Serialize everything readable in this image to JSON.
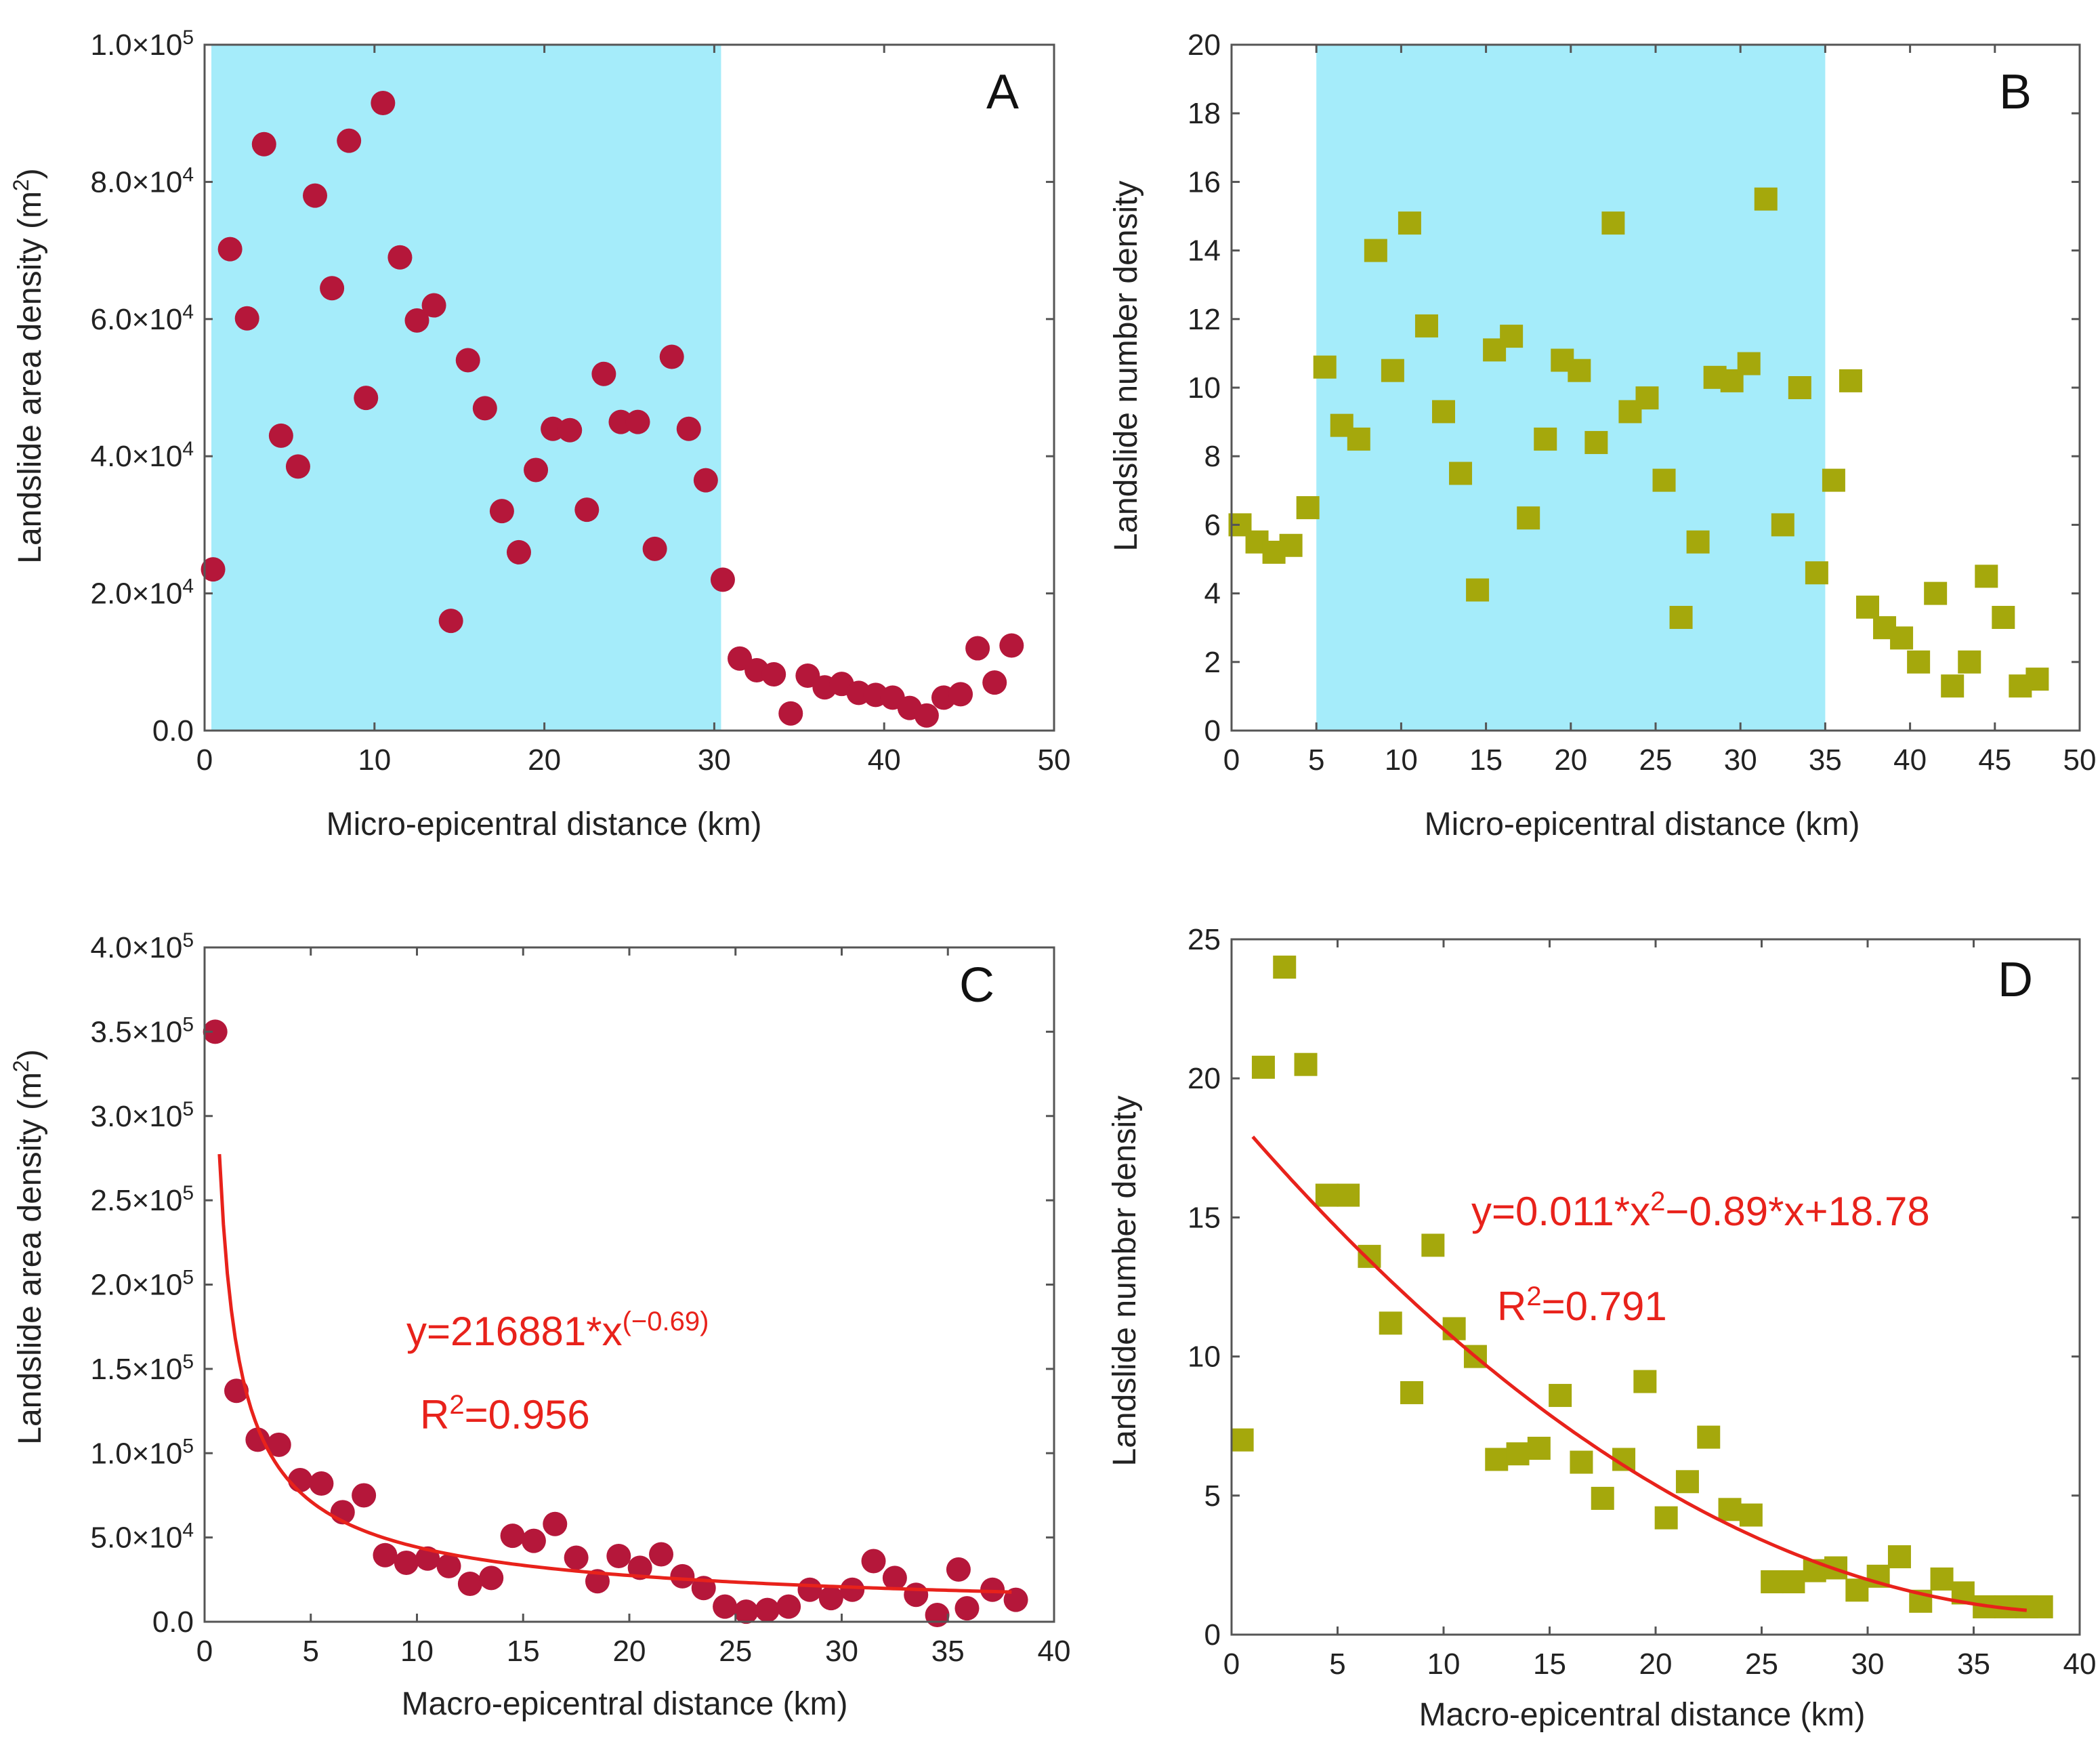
{
  "colors": {
    "shade": "#a5ecfa",
    "circle": "#b5173a",
    "square": "#a5a80c",
    "fit": "#e8221b",
    "axis": "#555555"
  },
  "chart_data": [
    {
      "id": "A",
      "type": "scatter",
      "letter": "A",
      "marker": "circle",
      "xlabel": "Micro-epicentral distance (km)",
      "ylabel": "Landslide area density (m²)",
      "xlim": [
        0,
        50
      ],
      "ylim": [
        0,
        100000
      ],
      "xticks": [
        0,
        10,
        20,
        30,
        40,
        50
      ],
      "yticks": [
        0,
        20000,
        40000,
        60000,
        80000,
        100000
      ],
      "ytick_format": "sci",
      "shaded_x": [
        0.4,
        30.4
      ],
      "x": [
        0.5,
        1.5,
        2.5,
        3.5,
        4.5,
        5.5,
        6.5,
        7.5,
        8.5,
        9.5,
        10.5,
        11.5,
        12.5,
        13.5,
        14.5,
        15.5,
        16.5,
        17.5,
        18.5,
        19.5,
        20.5,
        21.5,
        22.5,
        23.5,
        24.5,
        25.5,
        26.5,
        27.5,
        28.5,
        29.5,
        30.5,
        31.5,
        32.5,
        33.5,
        34.5,
        35.5,
        36.5,
        37.5,
        38.5,
        39.5,
        40.5,
        41.5,
        42.5,
        43.5,
        44.5,
        45.5,
        46.5,
        47.5
      ],
      "y": [
        23500,
        70200,
        60100,
        85500,
        43000,
        38500,
        78000,
        64500,
        86000,
        48500,
        91500,
        69000,
        59800,
        62000,
        16000,
        54000,
        47000,
        32000,
        26000,
        38000,
        44000,
        43800,
        32200,
        52000,
        45000,
        45000,
        26500,
        54500,
        44000,
        36500,
        22000,
        10500,
        8800,
        8200,
        2500,
        8000,
        6300,
        6800,
        5500,
        5200,
        4800,
        3300,
        2200,
        4800,
        5300,
        12000,
        7000,
        12400
      ]
    },
    {
      "id": "B",
      "type": "scatter",
      "letter": "B",
      "marker": "square",
      "xlabel": "Micro-epicentral distance (km)",
      "ylabel": "Landslide number density",
      "xlim": [
        0,
        50
      ],
      "ylim": [
        0,
        20
      ],
      "xticks": [
        0,
        5,
        10,
        15,
        20,
        25,
        30,
        35,
        40,
        45,
        50
      ],
      "yticks": [
        0,
        2,
        4,
        6,
        8,
        10,
        12,
        14,
        16,
        18,
        20
      ],
      "ytick_format": "int",
      "shaded_x": [
        5,
        35
      ],
      "x": [
        0.5,
        1.5,
        2.5,
        3.5,
        4.5,
        5.5,
        6.5,
        7.5,
        8.5,
        9.5,
        10.5,
        11.5,
        12.5,
        13.5,
        14.5,
        15.5,
        16.5,
        17.5,
        18.5,
        19.5,
        20.5,
        21.5,
        22.5,
        23.5,
        24.5,
        25.5,
        26.5,
        27.5,
        28.5,
        29.5,
        30.5,
        31.5,
        32.5,
        33.5,
        34.5,
        35.5,
        36.5,
        37.5,
        38.5,
        39.5,
        40.5,
        41.5,
        42.5,
        43.5,
        44.5,
        45.5,
        46.5,
        47.5
      ],
      "y": [
        6.0,
        5.5,
        5.2,
        5.4,
        6.5,
        10.6,
        8.9,
        8.5,
        14.0,
        10.5,
        14.8,
        11.8,
        9.3,
        7.5,
        4.1,
        11.1,
        11.5,
        6.2,
        8.5,
        10.8,
        10.5,
        8.4,
        14.8,
        9.3,
        9.7,
        7.3,
        3.3,
        5.5,
        10.3,
        10.2,
        10.7,
        15.5,
        6.0,
        10.0,
        4.6,
        7.3,
        10.2,
        3.6,
        3.0,
        2.7,
        2.0,
        4.0,
        1.3,
        2.0,
        4.5,
        3.3,
        1.3,
        1.5
      ]
    },
    {
      "id": "C",
      "type": "scatter",
      "letter": "C",
      "marker": "circle",
      "xlabel": "Macro-epicentral distance (km)",
      "ylabel": "Landslide area density (m²)",
      "xlim": [
        0,
        40
      ],
      "ylim": [
        0,
        400000
      ],
      "xticks": [
        0,
        5,
        10,
        15,
        20,
        25,
        30,
        35,
        40
      ],
      "yticks": [
        0,
        50000,
        100000,
        150000,
        200000,
        250000,
        300000,
        350000,
        400000
      ],
      "ytick_format": "sci",
      "x": [
        0.5,
        1.5,
        2.5,
        3.5,
        4.5,
        5.5,
        6.5,
        7.5,
        8.5,
        9.5,
        10.5,
        11.5,
        12.5,
        13.5,
        14.5,
        15.5,
        16.5,
        17.5,
        18.5,
        19.5,
        20.5,
        21.5,
        22.5,
        23.5,
        24.5,
        25.5,
        26.5,
        27.5,
        28.5,
        29.5,
        30.5,
        31.5,
        32.5,
        33.5,
        34.5,
        35.5,
        35.9,
        37.1,
        38.2
      ],
      "y": [
        350000,
        137000,
        108000,
        105000,
        84000,
        82000,
        65000,
        75000,
        39500,
        35000,
        37500,
        33000,
        22500,
        26000,
        51000,
        48000,
        58000,
        38000,
        24000,
        39000,
        32000,
        40000,
        27000,
        20000,
        9000,
        6000,
        7000,
        9000,
        19000,
        14000,
        19000,
        36000,
        26000,
        16000,
        4000,
        31000,
        8000,
        19000,
        13000
      ],
      "fit": {
        "a": 216881,
        "b": -0.69,
        "x_start": 0.7,
        "x_end": 38
      },
      "equation": "y=216881*x",
      "equation_exp": "(−0.69)",
      "r2_label": "R",
      "r2_sup": "2",
      "r2_value": "=0.956"
    },
    {
      "id": "D",
      "type": "scatter",
      "letter": "D",
      "marker": "square",
      "xlabel": "Macro-epicentral distance (km)",
      "ylabel": "Landslide number density",
      "xlim": [
        0,
        40
      ],
      "ylim": [
        0,
        25
      ],
      "xticks": [
        0,
        5,
        10,
        15,
        20,
        25,
        30,
        35,
        40
      ],
      "yticks": [
        0,
        5,
        10,
        15,
        20,
        25
      ],
      "ytick_format": "int",
      "x": [
        0.5,
        1.5,
        2.5,
        3.5,
        4.5,
        5.5,
        6.5,
        7.5,
        8.5,
        9.5,
        10.5,
        11.5,
        12.5,
        13.5,
        14.5,
        15.5,
        16.5,
        17.5,
        18.5,
        19.5,
        20.5,
        21.5,
        22.5,
        23.5,
        24.5,
        25.5,
        26.5,
        27.5,
        28.5,
        29.5,
        30.5,
        31.5,
        32.5,
        33.5,
        34.5,
        35.5,
        36.5,
        37.5,
        38.2
      ],
      "y": [
        7.0,
        20.4,
        24.0,
        20.5,
        15.8,
        15.8,
        13.6,
        11.2,
        8.7,
        14.0,
        11.0,
        10.0,
        6.3,
        6.5,
        6.7,
        8.6,
        6.2,
        4.9,
        6.3,
        9.1,
        4.2,
        5.5,
        7.1,
        4.5,
        4.3,
        1.9,
        1.9,
        2.3,
        2.4,
        1.6,
        2.1,
        2.8,
        1.2,
        2.0,
        1.5,
        1.0,
        1.0,
        1.0,
        1.0
      ],
      "fit": {
        "a": 0.011,
        "b": -0.89,
        "c": 18.78,
        "x_start": 1,
        "x_end": 37.5
      },
      "equation": "y=0.011*x",
      "equation_sup": "2",
      "equation_rest": "−0.89*x+18.78",
      "r2_label": "R",
      "r2_sup": "2",
      "r2_value": "=0.791"
    }
  ]
}
